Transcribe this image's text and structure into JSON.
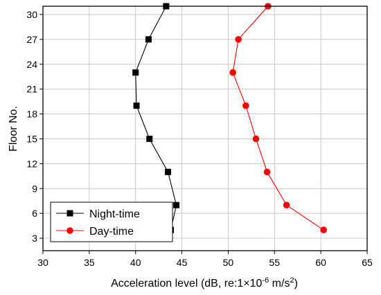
{
  "chart_data": {
    "type": "line",
    "title": "",
    "xlabel": {
      "prefix": "Acceleration level (dB, re:1×10",
      "exp1": "-6",
      "middle": " m/s",
      "exp2": "2",
      "suffix": ")"
    },
    "ylabel": "Floor No.",
    "xlim": [
      30,
      65
    ],
    "ylim": [
      1.5,
      31
    ],
    "xticks": [
      30,
      35,
      40,
      45,
      50,
      55,
      60,
      65
    ],
    "yticks": [
      3,
      6,
      9,
      12,
      15,
      18,
      21,
      24,
      27,
      30
    ],
    "grid": true,
    "legend_position": "bottom-left",
    "series": [
      {
        "name": "Night-time",
        "color": "#000000",
        "marker": "square",
        "points": [
          {
            "x": 43.8,
            "y": 4
          },
          {
            "x": 44.4,
            "y": 7
          },
          {
            "x": 43.5,
            "y": 11
          },
          {
            "x": 41.5,
            "y": 15
          },
          {
            "x": 40.1,
            "y": 19
          },
          {
            "x": 40.0,
            "y": 23
          },
          {
            "x": 41.4,
            "y": 27
          },
          {
            "x": 43.3,
            "y": 31
          }
        ]
      },
      {
        "name": "Day-time",
        "color": "#ff0000",
        "marker": "circle",
        "points": [
          {
            "x": 60.3,
            "y": 4
          },
          {
            "x": 56.3,
            "y": 7
          },
          {
            "x": 54.2,
            "y": 11
          },
          {
            "x": 53.0,
            "y": 15
          },
          {
            "x": 51.9,
            "y": 19
          },
          {
            "x": 50.5,
            "y": 23
          },
          {
            "x": 51.1,
            "y": 27
          },
          {
            "x": 54.3,
            "y": 31
          }
        ]
      }
    ]
  }
}
